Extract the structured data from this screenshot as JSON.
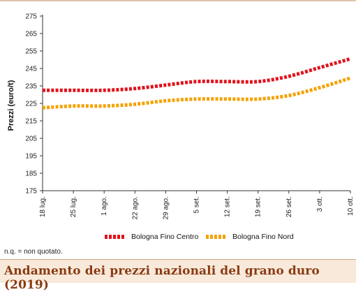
{
  "chart_data": {
    "type": "line",
    "ylabel": "Prezzi (euro/t)",
    "xlabel": "",
    "ylim": [
      175,
      275
    ],
    "yticks": [
      175,
      185,
      195,
      205,
      215,
      225,
      235,
      245,
      255,
      265,
      275
    ],
    "categories": [
      "18 lug.",
      "25 lug.",
      "1 ago.",
      "22 ago.",
      "29 ago.",
      "5 set.",
      "12 set.",
      "19 set.",
      "26 set.",
      "3 ott.",
      "10 ott."
    ],
    "series": [
      {
        "name": "Bologna Fino Centro",
        "color": "#e0131d",
        "values": [
          232.5,
          232.5,
          232.5,
          233.5,
          235.5,
          237.5,
          237.5,
          237.5,
          240.5,
          245.5,
          250.5
        ]
      },
      {
        "name": "Bologna Fino Nord",
        "color": "#f4a200",
        "values": [
          222.5,
          223.5,
          223.5,
          224.5,
          226.5,
          227.5,
          227.5,
          227.5,
          229.5,
          234.0,
          239.5
        ]
      }
    ],
    "grid": false,
    "legend_position": "bottom"
  },
  "note": "n.q. = non quotato.",
  "figure_title": "Andamento dei prezzi nazionali del grano duro (2019)",
  "colors": {
    "frame": "#c9a27c",
    "title_bg": "#f8e9db",
    "title_text": "#8a3b12"
  }
}
